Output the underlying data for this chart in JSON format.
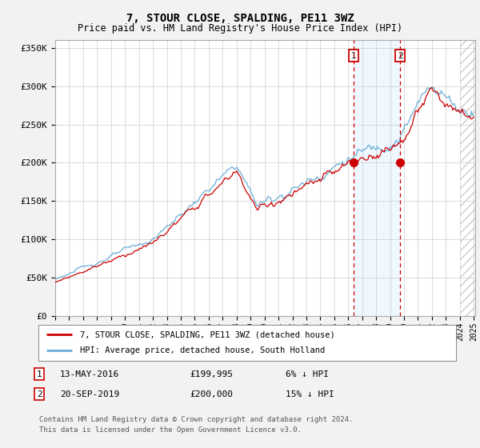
{
  "title": "7, STOUR CLOSE, SPALDING, PE11 3WZ",
  "subtitle": "Price paid vs. HM Land Registry's House Price Index (HPI)",
  "ylim": [
    0,
    360000
  ],
  "yticks": [
    0,
    50000,
    100000,
    150000,
    200000,
    250000,
    300000,
    350000
  ],
  "ytick_labels": [
    "£0",
    "£50K",
    "£100K",
    "£150K",
    "£200K",
    "£250K",
    "£300K",
    "£350K"
  ],
  "hpi_color": "#6aaed6",
  "price_color": "#cc0000",
  "transaction1_xval": 2016.37,
  "transaction1_price": 199995,
  "transaction2_xval": 2019.72,
  "transaction2_price": 200000,
  "legend_label1": "7, STOUR CLOSE, SPALDING, PE11 3WZ (detached house)",
  "legend_label2": "HPI: Average price, detached house, South Holland",
  "footnote1": "Contains HM Land Registry data © Crown copyright and database right 2024.",
  "footnote2": "This data is licensed under the Open Government Licence v3.0.",
  "background_color": "#f2f2f2",
  "plot_bg_color": "#ffffff",
  "shaded_color": "#ddeeff",
  "hatch_color": "#dddddd"
}
